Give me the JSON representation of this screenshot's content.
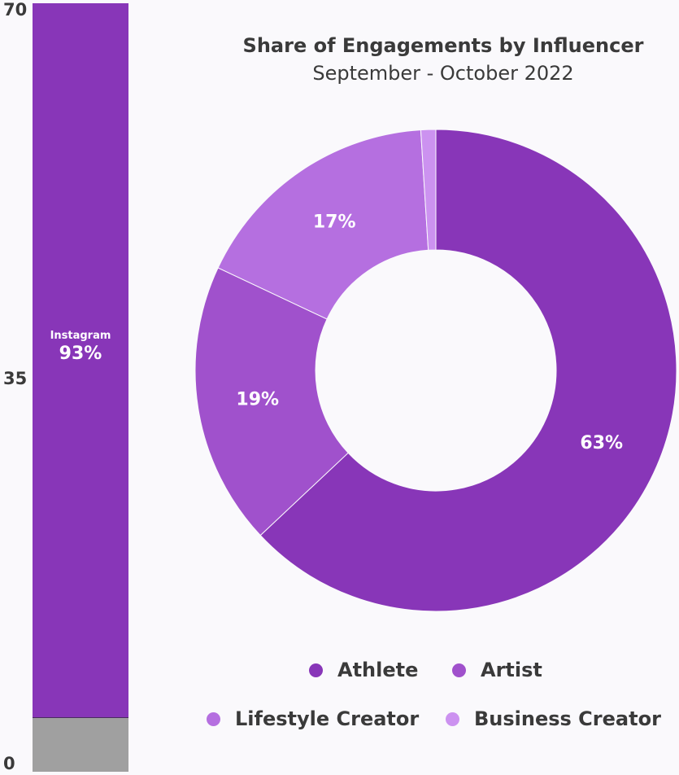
{
  "chart_data": [
    {
      "type": "bar",
      "stacked": true,
      "ylim": [
        0,
        70
      ],
      "yticks": [
        "70",
        "35",
        "0"
      ],
      "series": [
        {
          "name": "Instagram",
          "value_percent": 93,
          "label": "93%",
          "color": "#8836b8"
        },
        {
          "value_percent": 7,
          "color": "#a0a0a0"
        }
      ]
    },
    {
      "type": "pie",
      "donut": true,
      "title": "Share of Engagements by Influencer",
      "subtitle": "September - October 2022",
      "legend_position": "bottom",
      "slices": [
        {
          "name": "Athlete",
          "value": 63,
          "label": "63%",
          "color": "#8836b8"
        },
        {
          "name": "Artist",
          "value": 19,
          "label": "19%",
          "color": "#a051cc"
        },
        {
          "name": "Lifestyle Creator",
          "value": 17,
          "label": "17%",
          "color": "#b56fe0"
        },
        {
          "name": "Business Creator",
          "value": 1,
          "label": "",
          "color": "#cc92f0"
        }
      ]
    }
  ]
}
